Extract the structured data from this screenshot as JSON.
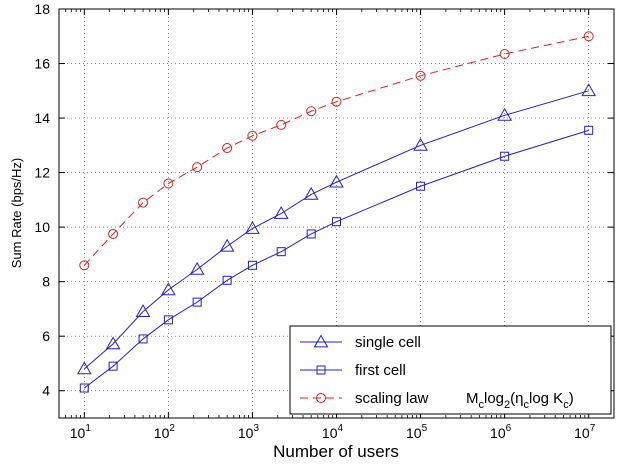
{
  "chart_data": {
    "type": "line",
    "xscale": "log",
    "xlabel": "Number of users",
    "ylabel": "Sum Rate (bps/Hz)",
    "xlim": [
      5,
      20000000
    ],
    "ylim": [
      3,
      18
    ],
    "grid": true,
    "x_ticks": [
      {
        "value": 10,
        "base": "10",
        "exp": "1"
      },
      {
        "value": 100,
        "base": "10",
        "exp": "2"
      },
      {
        "value": 1000,
        "base": "10",
        "exp": "3"
      },
      {
        "value": 10000,
        "base": "10",
        "exp": "4"
      },
      {
        "value": 100000,
        "base": "10",
        "exp": "5"
      },
      {
        "value": 1000000,
        "base": "10",
        "exp": "6"
      },
      {
        "value": 10000000,
        "base": "10",
        "exp": "7"
      }
    ],
    "y_ticks": [
      4,
      6,
      8,
      10,
      12,
      14,
      16,
      18
    ],
    "legend_position": "bottom-right",
    "series": [
      {
        "name": "single cell",
        "color": "#2020d0",
        "marker": "triangle",
        "line_style": "solid",
        "x": [
          10,
          22,
          50,
          100,
          220,
          500,
          1000,
          2200,
          5000,
          10000,
          100000,
          1000000,
          10000000
        ],
        "values": [
          4.8,
          5.72,
          6.9,
          7.7,
          8.45,
          9.3,
          9.95,
          10.5,
          11.2,
          11.65,
          13.0,
          14.1,
          15.0
        ]
      },
      {
        "name": "first cell",
        "color": "#2020d0",
        "marker": "square",
        "line_style": "solid",
        "x": [
          10,
          22,
          50,
          100,
          220,
          500,
          1000,
          2200,
          5000,
          10000,
          100000,
          1000000,
          10000000
        ],
        "values": [
          4.1,
          4.9,
          5.9,
          6.6,
          7.25,
          8.05,
          8.6,
          9.1,
          9.75,
          10.2,
          11.5,
          12.6,
          13.55
        ]
      },
      {
        "name": "scaling law",
        "formula": {
          "a": "M",
          "a_sub": "c",
          "b": "log",
          "b_sub": "2",
          "c": "(η",
          "c_sub": "c",
          "d": "log K",
          "d_sub": "c",
          "e": ")"
        },
        "color": "#e02020",
        "marker": "circle",
        "line_style": "dashed",
        "x": [
          10,
          22,
          50,
          100,
          220,
          500,
          1000,
          2200,
          5000,
          10000,
          100000,
          1000000,
          10000000
        ],
        "values": [
          8.6,
          9.75,
          10.9,
          11.6,
          12.2,
          12.9,
          13.35,
          13.75,
          14.25,
          14.6,
          15.55,
          16.35,
          17.0
        ]
      }
    ]
  }
}
